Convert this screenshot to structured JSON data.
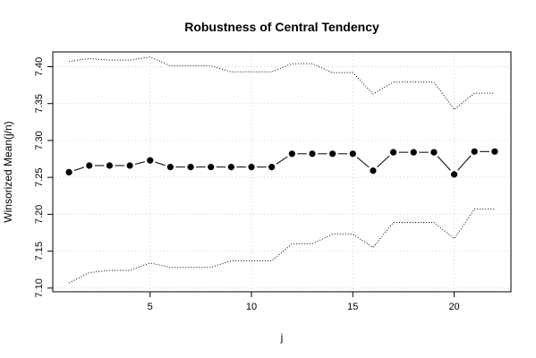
{
  "chart_data": {
    "type": "line",
    "title": "Robustness of Central Tendency",
    "xlabel": "j",
    "ylabel": "Winsorized Mean(j/n)",
    "x": [
      1,
      2,
      3,
      4,
      5,
      6,
      7,
      8,
      9,
      10,
      11,
      12,
      13,
      14,
      15,
      16,
      17,
      18,
      19,
      20,
      21,
      22
    ],
    "series": [
      {
        "style": "points-connected",
        "color": "#000000",
        "values": [
          7.257,
          7.266,
          7.266,
          7.266,
          7.273,
          7.264,
          7.264,
          7.264,
          7.264,
          7.264,
          7.264,
          7.282,
          7.282,
          7.282,
          7.282,
          7.259,
          7.284,
          7.284,
          7.284,
          7.254,
          7.285,
          7.285
        ]
      },
      {
        "style": "dotted",
        "color": "#000000",
        "values": [
          7.407,
          7.411,
          7.409,
          7.409,
          7.413,
          7.401,
          7.401,
          7.401,
          7.393,
          7.393,
          7.393,
          7.404,
          7.404,
          7.392,
          7.392,
          7.363,
          7.379,
          7.379,
          7.379,
          7.342,
          7.364,
          7.364
        ]
      },
      {
        "style": "dotted",
        "color": "#000000",
        "values": [
          7.107,
          7.121,
          7.124,
          7.124,
          7.134,
          7.128,
          7.128,
          7.128,
          7.137,
          7.137,
          7.137,
          7.16,
          7.16,
          7.173,
          7.173,
          7.155,
          7.189,
          7.189,
          7.189,
          7.167,
          7.207,
          7.207
        ]
      }
    ],
    "xlim": [
      0.2,
      22.8
    ],
    "ylim": [
      7.095,
      7.42
    ],
    "xticks": [
      5,
      10,
      15,
      20
    ],
    "yticks": [
      7.1,
      7.15,
      7.2,
      7.25,
      7.3,
      7.35,
      7.4
    ],
    "ytick_labels": [
      "7.10",
      "7.15",
      "7.20",
      "7.25",
      "7.30",
      "7.35",
      "7.40"
    ],
    "grid": true,
    "legend": "none"
  }
}
